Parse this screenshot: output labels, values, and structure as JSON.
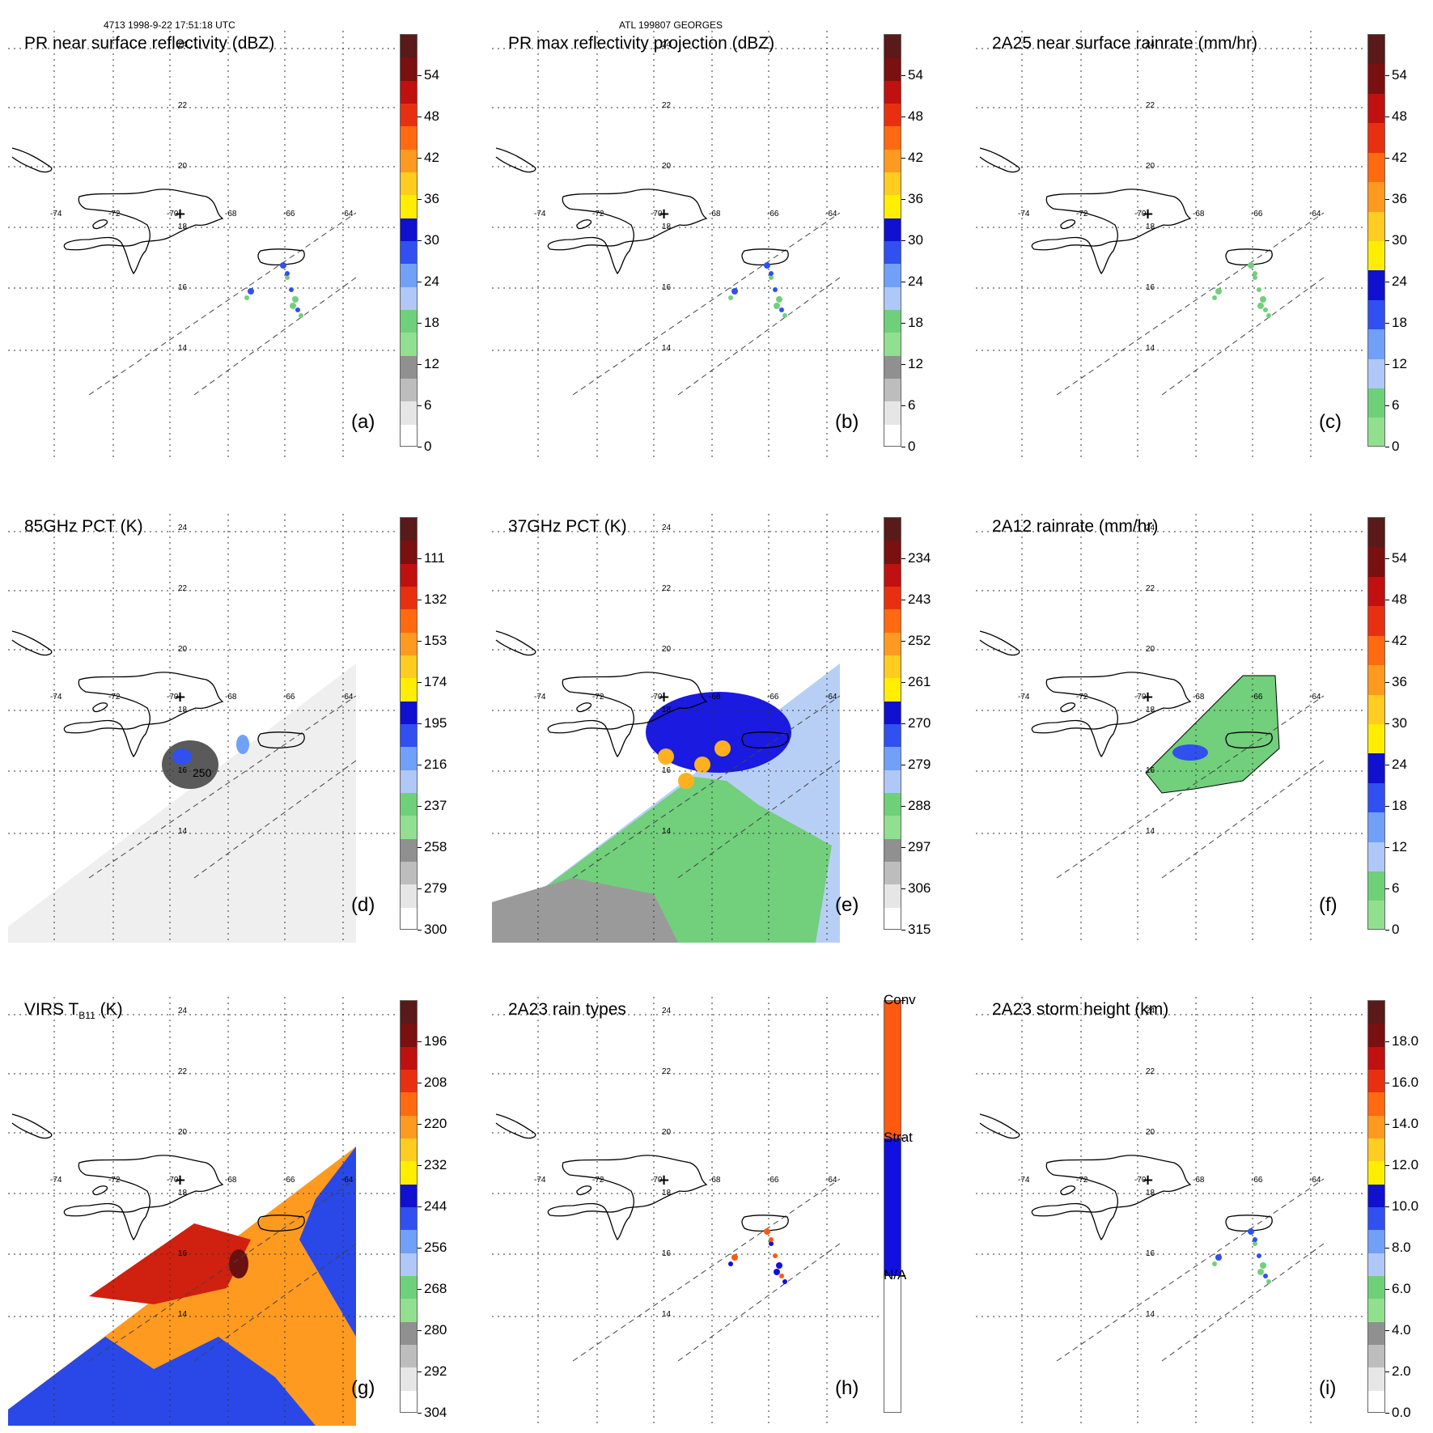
{
  "header": {
    "orbit_time": "4713 1998-9-22 17:51:18 UTC",
    "storm_id": "ATL 199807 GEORGES"
  },
  "map_labels": {
    "lon": [
      "-74",
      "-72",
      "-70",
      "-68",
      "-66",
      "-64"
    ],
    "lat": [
      "24",
      "22",
      "20",
      "18",
      "16",
      "14"
    ]
  },
  "panels": [
    {
      "id": "a",
      "title": "PR near surface reflectivity (dBZ)",
      "label": "(a)",
      "ticks": [
        "54",
        "48",
        "42",
        "36",
        "30",
        "24",
        "18",
        "12",
        "6",
        "0"
      ],
      "colors": [
        "#5a1a1a",
        "#7a1010",
        "#c01010",
        "#e83010",
        "#ff6a10",
        "#ff9a20",
        "#ffcc20",
        "#ffee00",
        "#1010d0",
        "#3050f0",
        "#70a0f8",
        "#b0c8f8",
        "#6fd07a",
        "#90e090",
        "#909090",
        "#bdbdbd",
        "#e6e6e6",
        "#ffffff"
      ],
      "swath": "narrow"
    },
    {
      "id": "b",
      "title": "PR max reflectivity projection (dBZ)",
      "label": "(b)",
      "ticks": [
        "54",
        "48",
        "42",
        "36",
        "30",
        "24",
        "18",
        "12",
        "6",
        "0"
      ],
      "colors": [
        "#5a1a1a",
        "#7a1010",
        "#c01010",
        "#e83010",
        "#ff6a10",
        "#ff9a20",
        "#ffcc20",
        "#ffee00",
        "#1010d0",
        "#3050f0",
        "#70a0f8",
        "#b0c8f8",
        "#6fd07a",
        "#90e090",
        "#909090",
        "#bdbdbd",
        "#e6e6e6",
        "#ffffff"
      ],
      "swath": "narrow"
    },
    {
      "id": "c",
      "title": "2A25 near surface rainrate (mm/hr)",
      "label": "(c)",
      "ticks": [
        "54",
        "48",
        "42",
        "36",
        "30",
        "24",
        "18",
        "12",
        "6",
        "0"
      ],
      "colors": [
        "#5a1a1a",
        "#7a1010",
        "#c01010",
        "#e83010",
        "#ff6a10",
        "#ff9a20",
        "#ffcc20",
        "#ffee00",
        "#1010d0",
        "#3050f0",
        "#70a0f8",
        "#b0c8f8",
        "#6fd07a",
        "#90e090"
      ],
      "swath": "narrow"
    },
    {
      "id": "d",
      "title": "85GHz PCT (K)",
      "label": "(d)",
      "ticks": [
        "111",
        "132",
        "153",
        "174",
        "195",
        "216",
        "237",
        "258",
        "279",
        "300"
      ],
      "colors": [
        "#5a1a1a",
        "#7a1010",
        "#c01010",
        "#e83010",
        "#ff6a10",
        "#ff9a20",
        "#ffcc20",
        "#ffee00",
        "#1010d0",
        "#3050f0",
        "#70a0f8",
        "#b0c8f8",
        "#6fd07a",
        "#90e090",
        "#909090",
        "#bdbdbd",
        "#e6e6e6",
        "#ffffff"
      ],
      "swath": "wide"
    },
    {
      "id": "e",
      "title": "37GHz PCT (K)",
      "label": "(e)",
      "ticks": [
        "234",
        "243",
        "252",
        "261",
        "270",
        "279",
        "288",
        "297",
        "306",
        "315"
      ],
      "colors": [
        "#5a1a1a",
        "#7a1010",
        "#c01010",
        "#e83010",
        "#ff6a10",
        "#ff9a20",
        "#ffcc20",
        "#ffee00",
        "#1010d0",
        "#3050f0",
        "#70a0f8",
        "#b0c8f8",
        "#6fd07a",
        "#90e090",
        "#909090",
        "#bdbdbd",
        "#e6e6e6",
        "#ffffff"
      ],
      "swath": "wide"
    },
    {
      "id": "f",
      "title": "2A12 rainrate (mm/hr)",
      "label": "(f)",
      "ticks": [
        "54",
        "48",
        "42",
        "36",
        "30",
        "24",
        "18",
        "12",
        "6",
        "0"
      ],
      "colors": [
        "#5a1a1a",
        "#7a1010",
        "#c01010",
        "#e83010",
        "#ff6a10",
        "#ff9a20",
        "#ffcc20",
        "#ffee00",
        "#1010d0",
        "#3050f0",
        "#70a0f8",
        "#b0c8f8",
        "#6fd07a",
        "#90e090"
      ],
      "swath": "wide"
    },
    {
      "id": "g",
      "title": "VIRS T",
      "title_sub": "B11",
      "title_suffix": " (K)",
      "label": "(g)",
      "ticks": [
        "196",
        "208",
        "220",
        "232",
        "244",
        "256",
        "268",
        "280",
        "292",
        "304"
      ],
      "colors": [
        "#5a1a1a",
        "#7a1010",
        "#c01010",
        "#e83010",
        "#ff6a10",
        "#ff9a20",
        "#ffcc20",
        "#ffee00",
        "#1010d0",
        "#3050f0",
        "#70a0f8",
        "#b0c8f8",
        "#6fd07a",
        "#90e090",
        "#909090",
        "#bdbdbd",
        "#e6e6e6",
        "#ffffff"
      ],
      "swath": "wide"
    },
    {
      "id": "h",
      "title": "2A23 rain types",
      "label": "(h)",
      "ticks": [
        "Conv",
        "Strat",
        "N/A"
      ],
      "colors": [
        "#ff5a10",
        "#1010e0",
        "#ffffff"
      ],
      "swath": "narrow"
    },
    {
      "id": "i",
      "title": "2A23 storm height (km)",
      "label": "(i)",
      "ticks": [
        "18.0",
        "16.0",
        "14.0",
        "12.0",
        "10.0",
        "8.0",
        "6.0",
        "4.0",
        "2.0",
        "0.0"
      ],
      "colors": [
        "#5a1a1a",
        "#7a1010",
        "#c01010",
        "#e83010",
        "#ff6a10",
        "#ff9a20",
        "#ffcc20",
        "#ffee00",
        "#1010d0",
        "#3050f0",
        "#70a0f8",
        "#b0c8f8",
        "#6fd07a",
        "#90e090",
        "#909090",
        "#bdbdbd",
        "#e6e6e6",
        "#ffffff"
      ],
      "swath": "narrow"
    }
  ],
  "contour_label_d": "250"
}
